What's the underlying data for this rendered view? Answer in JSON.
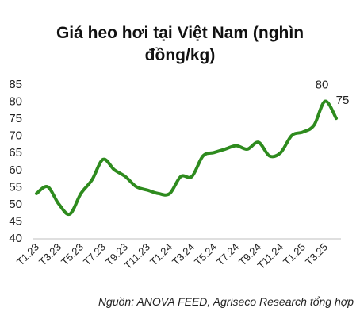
{
  "title_lines": [
    "Giá heo hơi tại Việt Nam (nghìn",
    "đồng/kg)"
  ],
  "source": "Nguồn: ANOVA FEED, Agriseco Research tổng hợp",
  "chart_data": {
    "type": "line",
    "title": "Giá heo hơi tại Việt Nam (nghìn đồng/kg)",
    "xlabel": "",
    "ylabel": "",
    "ylim": [
      40,
      85
    ],
    "yticks": [
      40,
      45,
      50,
      55,
      60,
      65,
      70,
      75,
      80,
      85
    ],
    "grid": false,
    "line_color": "#2e8b1e",
    "x_tick_labels": [
      "T1.23",
      "T3.23",
      "T5.23",
      "T7.23",
      "T9.23",
      "T11.23",
      "T1.24",
      "T3.24",
      "T5.24",
      "T7.24",
      "T9.24",
      "T11.24",
      "T1.25",
      "T3.25"
    ],
    "x": [
      "T1.23",
      "T2.23",
      "T3.23",
      "T4.23",
      "T5.23",
      "T6.23",
      "T7.23",
      "T8.23",
      "T9.23",
      "T10.23",
      "T11.23",
      "T12.23",
      "T1.24",
      "T2.24",
      "T3.24",
      "T4.24",
      "T5.24",
      "T6.24",
      "T7.24",
      "T8.24",
      "T9.24",
      "T10.24",
      "T11.24",
      "T12.24",
      "T1.25",
      "T2.25",
      "T3.25",
      "T4.25"
    ],
    "values": [
      53,
      55,
      50,
      47,
      53,
      57,
      63,
      60,
      58,
      55,
      54,
      53,
      53,
      58,
      58,
      64,
      65,
      66,
      67,
      66,
      68,
      64,
      65,
      70,
      71,
      73,
      80,
      75
    ],
    "data_labels": [
      {
        "index": 26,
        "text": "80"
      },
      {
        "index": 27,
        "text": "75"
      }
    ]
  }
}
